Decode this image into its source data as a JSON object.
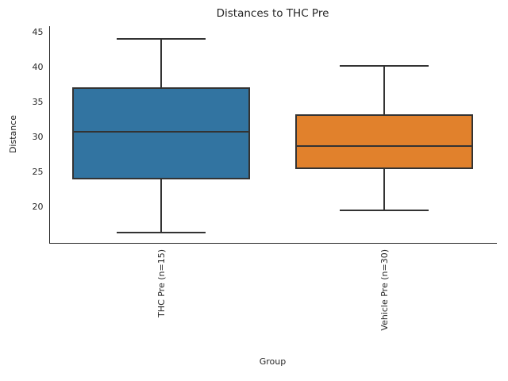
{
  "chart_data": {
    "type": "box",
    "title": "Distances to THC Pre",
    "xlabel": "Group",
    "ylabel": "Distance",
    "yticks": [
      20,
      25,
      30,
      35,
      40,
      45
    ],
    "ylim": [
      14.9,
      45.9
    ],
    "grid": false,
    "line_color": "#333333",
    "spine_color": "#262626",
    "text_color": "#262626",
    "categories": [
      "THC Pre (n=15)",
      "Vehicle Pre (n=30)"
    ],
    "groups": [
      {
        "label": "THC Pre (n=15)",
        "color": "#3274A1",
        "whisker_low": 16.4,
        "q1": 24.0,
        "median": 30.8,
        "q3": 37.1,
        "whisker_high": 44.1
      },
      {
        "label": "Vehicle Pre (n=30)",
        "color": "#E1812C",
        "whisker_low": 19.6,
        "q1": 25.5,
        "median": 28.8,
        "q3": 33.3,
        "whisker_high": 40.2
      }
    ]
  }
}
